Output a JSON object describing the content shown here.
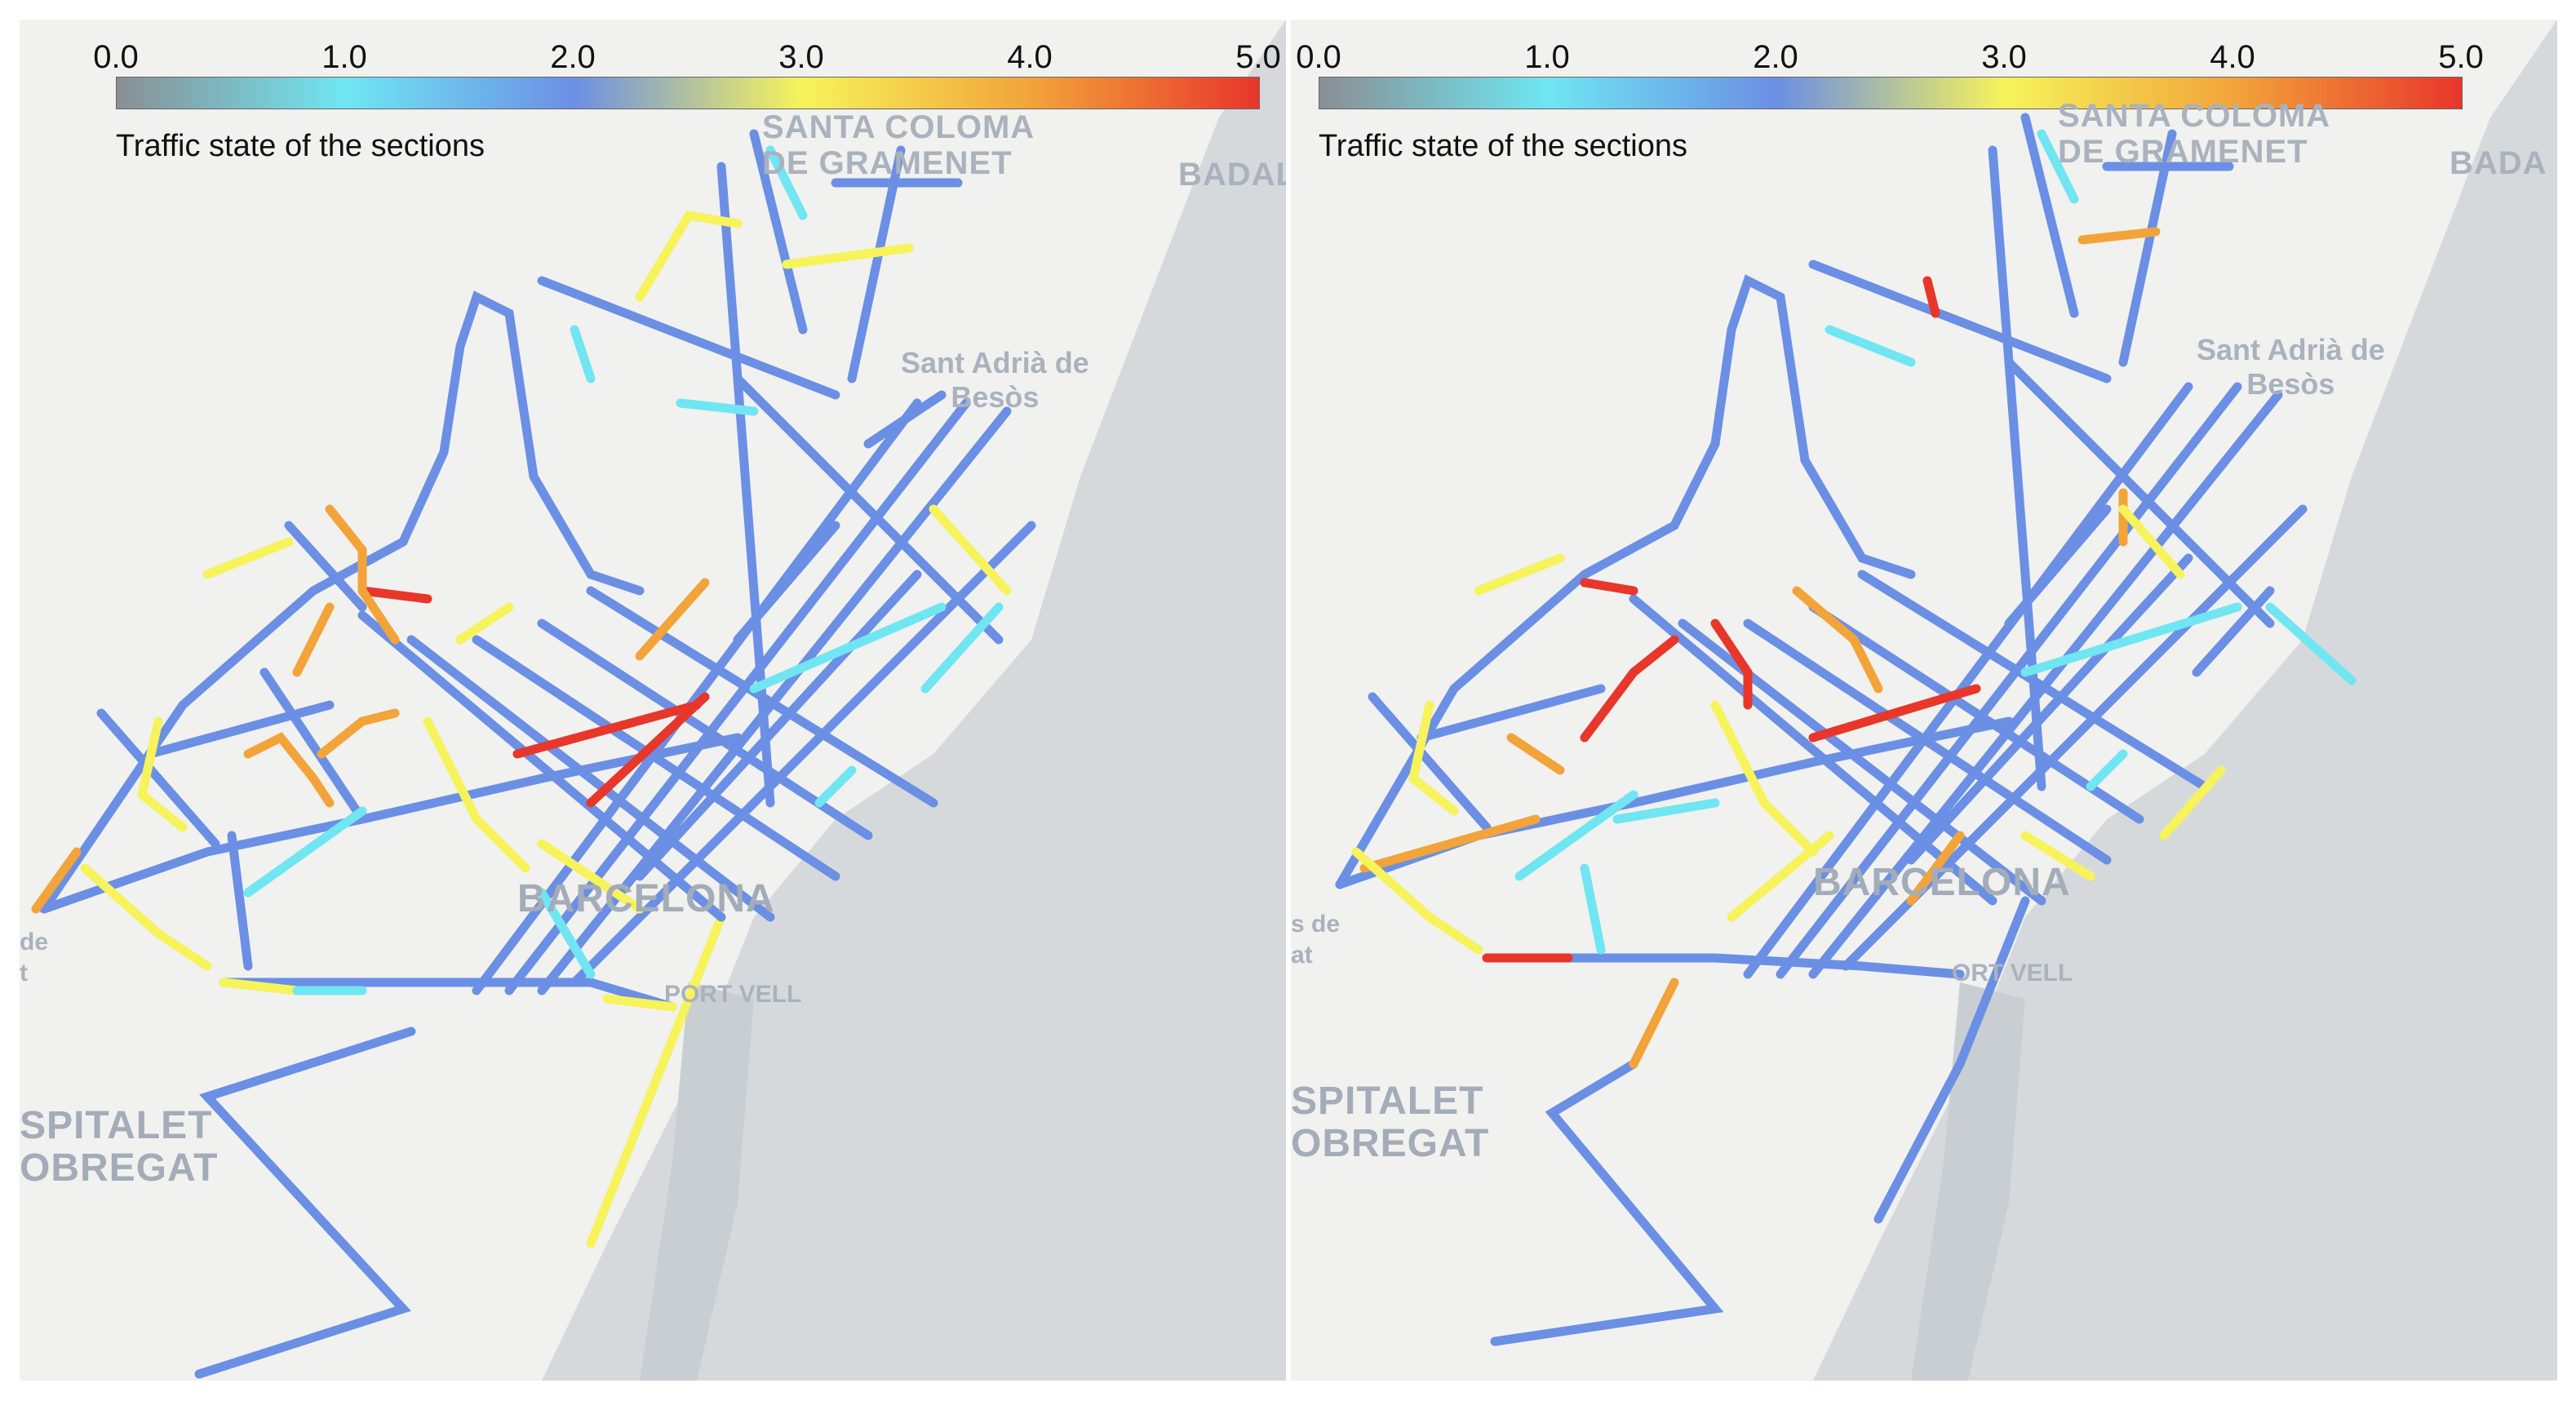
{
  "colorscale": {
    "ticks": [
      "0.0",
      "1.0",
      "2.0",
      "3.0",
      "4.0",
      "5.0"
    ],
    "range": [
      0,
      5
    ],
    "title": "Traffic state of the sections",
    "colors": [
      "#8a8f94",
      "#6fe6f2",
      "#6b8fe4",
      "#f6f35b",
      "#f2a43a",
      "#e8362b"
    ]
  },
  "panels": [
    {
      "id": "left",
      "places": {
        "santa_coloma": "SANTA COLOMA\nDE GRAMENET",
        "badalona": "BADALO",
        "sant_adria": "Sant Adrià de\nBesòs",
        "barcelona": "BARCELONA",
        "port_vell": "PORT VELL",
        "hospitalet": "SPITALET\nOBREGAT",
        "edge_de": "de\nt"
      }
    },
    {
      "id": "right",
      "places": {
        "santa_coloma": "SANTA COLOMA\nDE GRAMENET",
        "badalona": "BADA",
        "sant_adria": "Sant Adrià de\nBesòs",
        "barcelona": "BARCELONA",
        "port_vell": "ORT VELL",
        "hospitalet": "SPITALET\nOBREGAT",
        "edge_de": "s de\nat"
      }
    }
  ]
}
